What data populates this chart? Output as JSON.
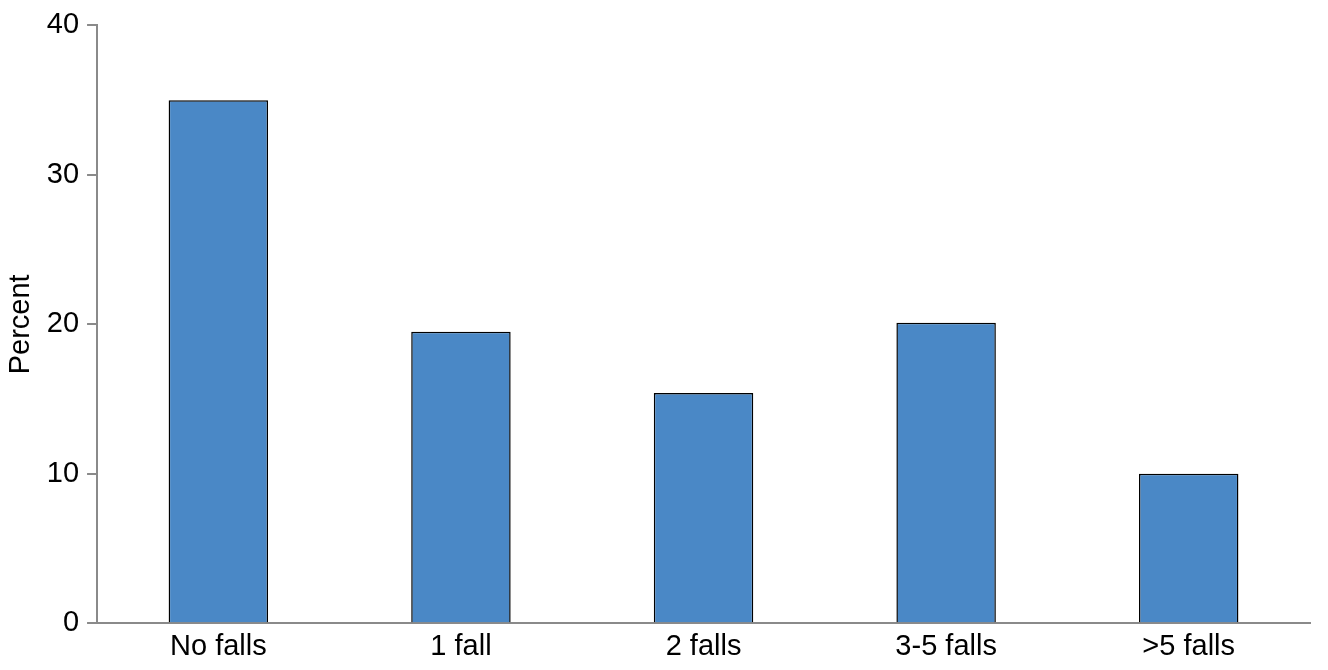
{
  "chart_data": {
    "type": "bar",
    "ylabel": "Percent",
    "categories": [
      "No falls",
      "1 fall",
      "2 falls",
      "3-5 falls",
      ">5 falls"
    ],
    "values": [
      35,
      19.5,
      15.4,
      20.1,
      10
    ],
    "color": "#4a88c6",
    "ylim": [
      0,
      40
    ],
    "yticks": [
      0,
      10,
      20,
      30,
      40
    ],
    "grid": false,
    "legend": false
  }
}
